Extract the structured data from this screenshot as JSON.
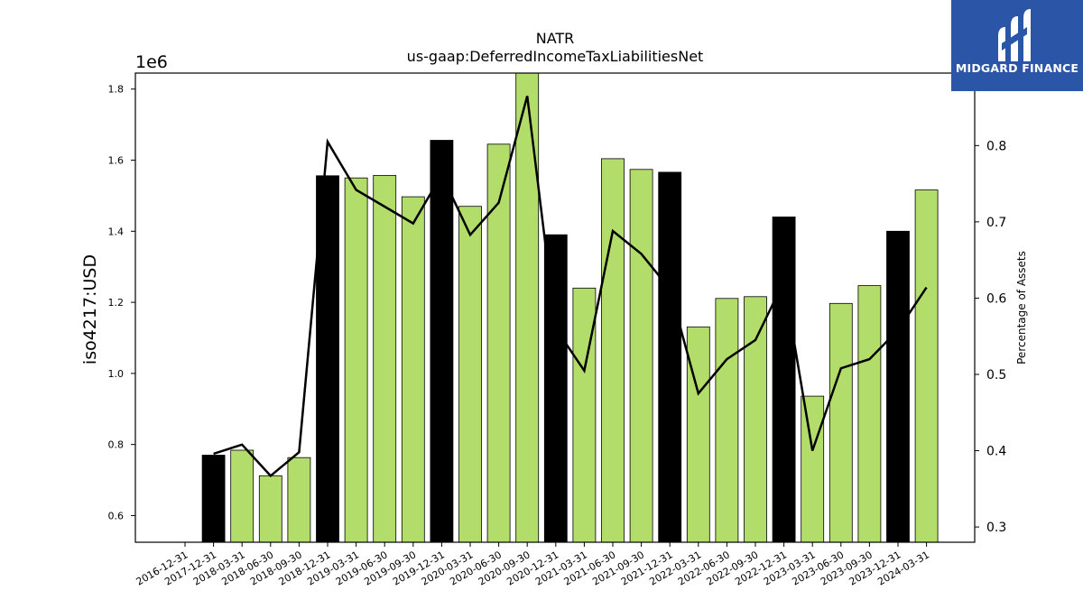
{
  "chart_data": {
    "type": "bar",
    "title": "NATR",
    "subtitle": "us-gaap:DeferredIncomeTaxLiabilitiesNet",
    "ylabel": "iso4217:USD",
    "y_multiplier": "1e6",
    "y2label": "Percentage of Assets",
    "ylim": [
      0.525,
      1.845
    ],
    "y2lim": [
      0.28,
      0.895
    ],
    "yticks": [
      0.6,
      0.8,
      1.0,
      1.2,
      1.4,
      1.6,
      1.8
    ],
    "y2ticks": [
      0.3,
      0.4,
      0.5,
      0.6,
      0.7,
      0.8
    ],
    "categories": [
      "2016-12-31",
      "2017-12-31",
      "2018-03-31",
      "2018-06-30",
      "2018-09-30",
      "2018-12-31",
      "2019-03-31",
      "2019-06-30",
      "2019-09-30",
      "2019-12-31",
      "2020-03-31",
      "2020-06-30",
      "2020-09-30",
      "2020-12-31",
      "2021-03-31",
      "2021-06-30",
      "2021-09-30",
      "2021-12-31",
      "2022-03-31",
      "2022-06-30",
      "2022-09-30",
      "2022-12-31",
      "2023-03-31",
      "2023-06-30",
      "2023-09-30",
      "2023-12-31",
      "2024-03-31"
    ],
    "series": [
      {
        "values": [
          null,
          0.77,
          0.784,
          0.712,
          0.763,
          1.556,
          1.55,
          1.557,
          1.497,
          1.656,
          1.47,
          1.645,
          1.85,
          1.39,
          1.24,
          1.604,
          1.574,
          1.566,
          1.131,
          1.211,
          1.216,
          1.44,
          0.936,
          1.197,
          1.247,
          1.4,
          1.516
        ],
        "annual": [
          false,
          true,
          false,
          false,
          false,
          true,
          false,
          false,
          false,
          true,
          false,
          false,
          false,
          true,
          false,
          false,
          false,
          true,
          false,
          false,
          false,
          true,
          false,
          false,
          false,
          true,
          false
        ]
      },
      {
        "values": [
          null,
          0.396,
          0.408,
          0.367,
          0.398,
          0.805,
          0.742,
          0.72,
          0.698,
          0.762,
          0.683,
          0.725,
          0.865,
          0.56,
          0.505,
          0.688,
          0.658,
          0.612,
          0.475,
          0.52,
          0.545,
          0.622,
          0.4,
          0.508,
          0.52,
          0.558,
          0.614
        ]
      }
    ],
    "colors": {
      "quarterly": "#b3dd6a",
      "annual": "#000000",
      "line": "#000000"
    },
    "grid": false
  },
  "logo": {
    "text": "MIDGARD FINANCE",
    "background": "#2b56a8"
  }
}
